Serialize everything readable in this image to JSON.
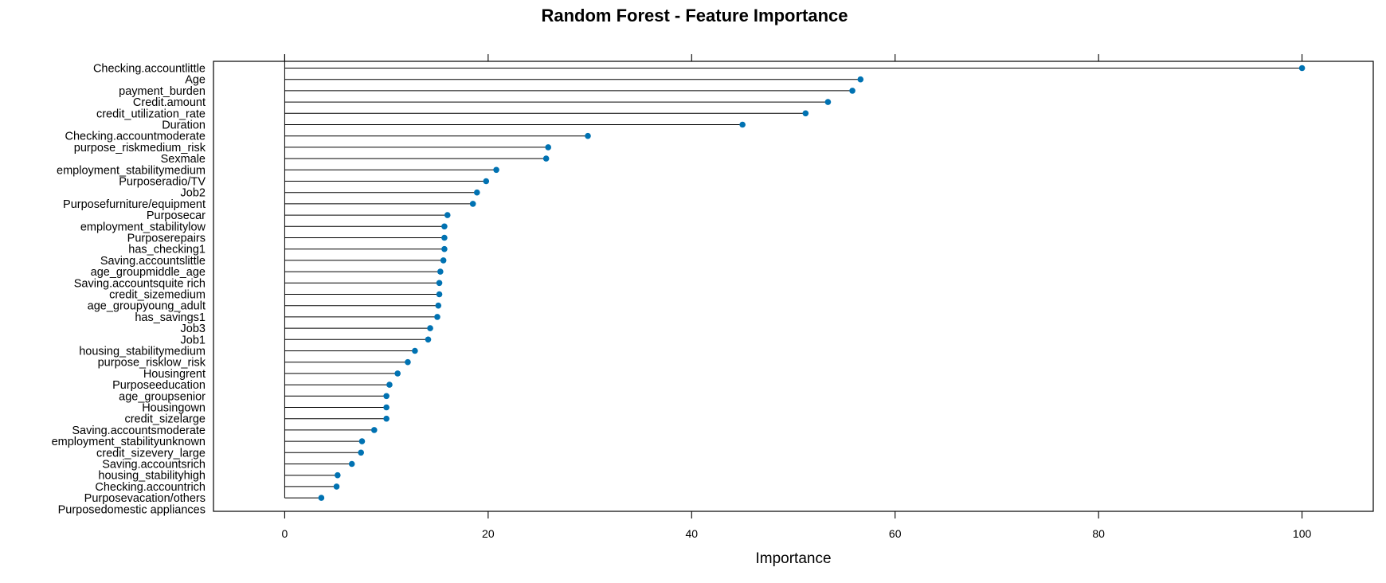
{
  "chart_data": {
    "type": "lollipop",
    "title": "Random Forest - Feature Importance",
    "xlabel": "Importance",
    "ylabel": "",
    "xlim": [
      -7,
      107
    ],
    "xticks": [
      0,
      20,
      40,
      60,
      80,
      100
    ],
    "grid": false,
    "point_color": "#0072B2",
    "categories": [
      "Checking.accountlittle",
      "Age",
      "payment_burden",
      "Credit.amount",
      "credit_utilization_rate",
      "Duration",
      "Checking.accountmoderate",
      "purpose_riskmedium_risk",
      "Sexmale",
      "employment_stabilitymedium",
      "Purposeradio/TV",
      "Job2",
      "Purposefurniture/equipment",
      "Purposecar",
      "employment_stabilitylow",
      "Purposerepairs",
      "has_checking1",
      "Saving.accountslittle",
      "age_groupmiddle_age",
      "Saving.accountsquite rich",
      "credit_sizemedium",
      "age_groupyoung_adult",
      "has_savings1",
      "Job3",
      "Job1",
      "housing_stabilitymedium",
      "purpose_risklow_risk",
      "Housingrent",
      "Purposeeducation",
      "age_groupsenior",
      "Housingown",
      "credit_sizelarge",
      "Saving.accountsmoderate",
      "employment_stabilityunknown",
      "credit_sizevery_large",
      "Saving.accountsrich",
      "housing_stabilityhigh",
      "Checking.accountrich",
      "Purposevacation/others",
      "Purposedomestic appliances"
    ],
    "values": [
      100,
      56.6,
      55.8,
      53.4,
      51.2,
      45.0,
      29.8,
      25.9,
      25.7,
      20.8,
      19.8,
      18.9,
      18.5,
      16.0,
      15.7,
      15.7,
      15.7,
      15.6,
      15.3,
      15.2,
      15.2,
      15.1,
      15.0,
      14.3,
      14.1,
      12.8,
      12.1,
      11.1,
      10.3,
      10.0,
      10.0,
      10.0,
      8.8,
      7.6,
      7.5,
      6.6,
      5.2,
      5.1,
      3.6,
      0
    ]
  }
}
